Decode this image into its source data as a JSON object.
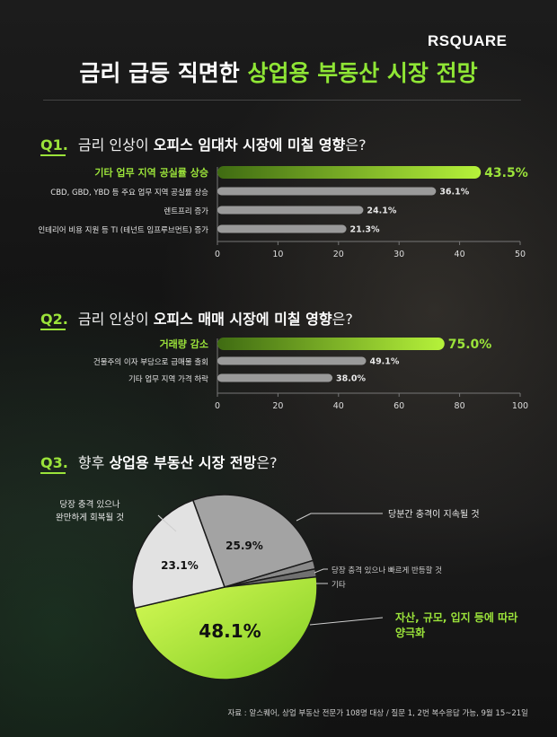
{
  "logo": "RSQUARE",
  "title": {
    "part1": "금리 급등 직면한",
    "part2": "상업용 부동산 시장 전망"
  },
  "questions": [
    {
      "num": "Q1.",
      "pre": "금리 인상이",
      "hl": "오피스 임대차 시장에 미칠 영향",
      "post": "은?"
    },
    {
      "num": "Q2.",
      "pre": "금리 인상이",
      "hl": "오피스 매매 시장에 미칠 영향",
      "post": "은?"
    },
    {
      "num": "Q3.",
      "pre": "향후",
      "hl": "상업용 부동산 시장 전망",
      "post": "은?"
    }
  ],
  "chart_data": [
    {
      "type": "bar",
      "categories": [
        "기타 업무 지역 공실률 상승",
        "CBD, GBD, YBD 등 주요 업무 지역 공실률 상승",
        "렌트프리 증가",
        "인테리어 비용 지원 등 TI (테넌트 임프루브먼트) 증가"
      ],
      "values": [
        43.5,
        36.1,
        24.1,
        21.3
      ],
      "value_labels": [
        "43.5%",
        "36.1%",
        "24.1%",
        "21.3%"
      ],
      "xlim": [
        0,
        50
      ],
      "xticks": [
        "0",
        "10",
        "20",
        "30",
        "40",
        "50"
      ]
    },
    {
      "type": "bar",
      "categories": [
        "거래량 감소",
        "건물주의 이자 부담으로 급매물 출회",
        "기타 업무 지역 가격 하락"
      ],
      "values": [
        75.0,
        49.1,
        38.0
      ],
      "value_labels": [
        "75.0%",
        "49.1%",
        "38.0%"
      ],
      "xlim": [
        0,
        100
      ],
      "xticks": [
        "0",
        "20",
        "40",
        "60",
        "80",
        "100"
      ]
    },
    {
      "type": "pie",
      "slices": [
        {
          "label": "당분간 충격이 지속될 것",
          "value": 25.9,
          "value_label": "25.9%"
        },
        {
          "label": "당장 충격 있으나 빠르게 반등할 것",
          "value": 1.5,
          "value_label": ""
        },
        {
          "label": "기타",
          "value": 1.4,
          "value_label": ""
        },
        {
          "label": "자산, 규모, 입지 등에 따라 양극화",
          "value": 48.1,
          "value_label": "48.1%"
        },
        {
          "label": "당장 충격 있으나 완만하게 회복될 것",
          "value": 23.1,
          "value_label": "23.1%"
        }
      ]
    }
  ],
  "colors": {
    "accent": "#9be33a",
    "bar_gray": "#9a9a9a",
    "pie_light": "#e2e2e2",
    "pie_mid": "#a3a3a3",
    "pie_dark": "#707070"
  },
  "source": "자료 : 알스퀘어, 상업 부동산 전문가 108명 대상 / 질문 1, 2번 복수응답 가능, 9월 15~21일"
}
